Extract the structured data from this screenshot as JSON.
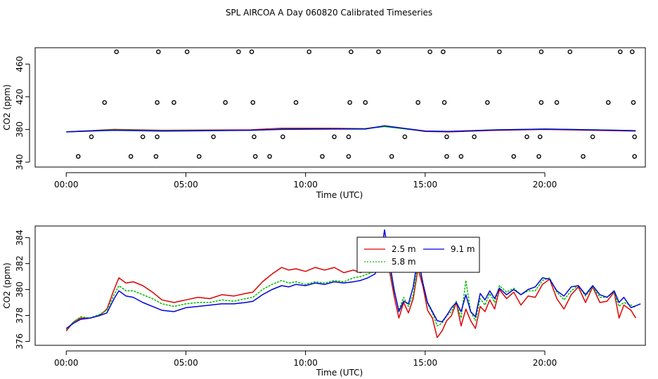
{
  "title": "SPL AIRCOA A  Day 060820  Calibrated Timeseries",
  "chart_data": [
    {
      "type": "scatter",
      "xlabel": "Time (UTC)",
      "ylabel": "CO2 (ppm)",
      "xlim": [
        -1.3,
        24.2
      ],
      "ylim": [
        334,
        480
      ],
      "x_ticks": [
        {
          "value": 0,
          "label": "00:00"
        },
        {
          "value": 5,
          "label": "05:00"
        },
        {
          "value": 10,
          "label": "10:00"
        },
        {
          "value": 15,
          "label": "15:00"
        },
        {
          "value": 20,
          "label": "20:00"
        }
      ],
      "y_ticks": [
        {
          "value": 340,
          "label": "340"
        },
        {
          "value": 380,
          "label": "380"
        },
        {
          "value": 420,
          "label": "420"
        },
        {
          "value": 460,
          "label": "460"
        }
      ],
      "grid": false,
      "markers": {
        "symbol": "open-circle",
        "color": "#000000",
        "x": [
          2.1,
          3.85,
          5.05,
          7.2,
          7.75,
          10.15,
          11.9,
          13.05,
          15.2,
          15.75,
          18.1,
          19.85,
          21.05,
          23.15,
          23.65,
          1.6,
          3.8,
          4.5,
          6.65,
          7.8,
          9.6,
          11.85,
          12.5,
          14.7,
          15.8,
          17.6,
          19.85,
          20.5,
          22.65,
          23.7,
          1.05,
          3.2,
          3.8,
          6.15,
          7.85,
          9.05,
          11.2,
          11.8,
          14.15,
          15.9,
          17.05,
          19.25,
          19.8,
          22.0,
          23.75,
          0.5,
          2.7,
          3.75,
          5.55,
          7.9,
          8.5,
          10.7,
          11.8,
          13.6,
          15.9,
          16.5,
          18.7,
          19.75,
          21.6,
          23.75
        ],
        "y": [
          475,
          475,
          475,
          475,
          475,
          475,
          475,
          475,
          475,
          475,
          475,
          475,
          475,
          475,
          475,
          413,
          413,
          413,
          413,
          413,
          413,
          413,
          413,
          413,
          413,
          413,
          413,
          413,
          413,
          413,
          371,
          371,
          371,
          371,
          371,
          371,
          371,
          371,
          371,
          371,
          371,
          371,
          371,
          371,
          371,
          347,
          347,
          347,
          347,
          347,
          347,
          347,
          347,
          347,
          347,
          347,
          347,
          347,
          347,
          347
        ]
      },
      "series": [
        {
          "color": "#dd0000",
          "x": [
            0,
            2,
            4,
            7.7,
            9,
            11,
            12.5,
            13.3,
            15,
            16,
            18,
            20,
            22,
            23.8
          ],
          "values": [
            377,
            380,
            379,
            379.5,
            381.5,
            381.5,
            381,
            384,
            377.5,
            377,
            379,
            380,
            379,
            378
          ]
        },
        {
          "color": "#00bb00",
          "x": [
            0,
            2,
            4,
            7.7,
            9,
            11,
            12.5,
            13.3,
            15,
            16,
            18,
            20,
            22,
            23.8
          ],
          "values": [
            377,
            379.5,
            378.5,
            379,
            380.5,
            380.5,
            381,
            383.5,
            378,
            377.5,
            379.5,
            380.5,
            379.5,
            378.5
          ]
        },
        {
          "color": "#0000dd",
          "x": [
            0,
            2,
            4,
            7.7,
            9,
            11,
            12.5,
            13.3,
            15,
            16,
            18,
            20,
            22,
            23.8
          ],
          "values": [
            377,
            379,
            378,
            379,
            380,
            380.5,
            380.5,
            384.5,
            378,
            377.5,
            379.5,
            380.5,
            379.5,
            378.5
          ]
        }
      ]
    },
    {
      "type": "line",
      "xlabel": "Time (UTC)",
      "ylabel": "CO2 (ppm)",
      "xlim": [
        -1.3,
        24.2
      ],
      "ylim": [
        375.7,
        384.9
      ],
      "x_ticks": [
        {
          "value": 0,
          "label": "00:00"
        },
        {
          "value": 5,
          "label": "05:00"
        },
        {
          "value": 10,
          "label": "10:00"
        },
        {
          "value": 15,
          "label": "15:00"
        },
        {
          "value": 20,
          "label": "20:00"
        }
      ],
      "y_ticks": [
        {
          "value": 376,
          "label": "376"
        },
        {
          "value": 378,
          "label": "378"
        },
        {
          "value": 380,
          "label": "380"
        },
        {
          "value": 382,
          "label": "382"
        },
        {
          "value": 384,
          "label": "384"
        }
      ],
      "grid": false,
      "legend_position": "top-center",
      "series": [
        {
          "name": "2.5 m",
          "color": "#dd0000",
          "dash": "solid",
          "x": [
            0,
            0.3,
            0.6,
            1.0,
            1.4,
            1.7,
            2.0,
            2.2,
            2.5,
            2.8,
            3.2,
            3.6,
            4.0,
            4.5,
            5.0,
            5.5,
            6.0,
            6.5,
            7.0,
            7.5,
            7.8,
            8.2,
            8.6,
            9.0,
            9.3,
            9.6,
            10.0,
            10.4,
            10.8,
            11.2,
            11.6,
            12.0,
            12.3,
            12.6,
            12.9,
            13.1,
            13.3,
            13.5,
            13.7,
            13.9,
            14.1,
            14.3,
            14.5,
            14.7,
            14.9,
            15.1,
            15.3,
            15.5,
            15.7,
            15.9,
            16.1,
            16.3,
            16.5,
            16.7,
            16.9,
            17.1,
            17.3,
            17.5,
            17.7,
            17.9,
            18.1,
            18.4,
            18.7,
            19.0,
            19.3,
            19.6,
            19.9,
            20.2,
            20.5,
            20.8,
            21.1,
            21.4,
            21.7,
            22.0,
            22.3,
            22.6,
            22.9,
            23.1,
            23.3,
            23.6,
            23.8
          ],
          "values": [
            376.8,
            377.5,
            377.8,
            377.8,
            378.0,
            378.5,
            380.0,
            380.9,
            380.5,
            380.6,
            380.3,
            379.8,
            379.2,
            379.0,
            379.2,
            379.4,
            379.3,
            379.6,
            379.5,
            379.7,
            379.8,
            380.6,
            381.2,
            381.7,
            381.5,
            381.6,
            381.4,
            381.7,
            381.5,
            381.7,
            381.3,
            381.5,
            381.3,
            381.7,
            381.6,
            382.2,
            383.4,
            381.5,
            379.5,
            377.8,
            379.0,
            378.2,
            379.3,
            381.6,
            380.3,
            378.4,
            377.8,
            376.3,
            376.8,
            377.6,
            378.0,
            379.0,
            377.2,
            378.5,
            377.6,
            377.0,
            378.7,
            378.3,
            379.2,
            378.5,
            380.0,
            379.3,
            379.8,
            378.8,
            379.5,
            379.4,
            380.4,
            380.8,
            379.3,
            378.5,
            379.6,
            380.2,
            379.0,
            380.2,
            379.0,
            379.1,
            379.8,
            377.8,
            378.8,
            378.4,
            377.8
          ]
        },
        {
          "name": "5.8 m",
          "color": "#00bb00",
          "dash": "dotted",
          "x": [
            0,
            0.3,
            0.6,
            1.0,
            1.4,
            1.7,
            2.0,
            2.2,
            2.5,
            2.8,
            3.2,
            3.6,
            4.0,
            4.5,
            5.0,
            5.5,
            6.0,
            6.5,
            7.0,
            7.5,
            7.8,
            8.2,
            8.6,
            9.0,
            9.3,
            9.6,
            10.0,
            10.4,
            10.8,
            11.2,
            11.6,
            12.0,
            12.3,
            12.6,
            12.9,
            13.1,
            13.3,
            13.5,
            13.7,
            13.9,
            14.1,
            14.3,
            14.5,
            14.7,
            14.9,
            15.1,
            15.3,
            15.5,
            15.7,
            15.9,
            16.1,
            16.3,
            16.5,
            16.7,
            16.9,
            17.1,
            17.3,
            17.5,
            17.7,
            17.9,
            18.1,
            18.4,
            18.7,
            19.0,
            19.3,
            19.6,
            19.9,
            20.2,
            20.5,
            20.8,
            21.1,
            21.4,
            21.7,
            22.0,
            22.3,
            22.6,
            22.9,
            23.1,
            23.3,
            23.6,
            23.8
          ],
          "values": [
            376.9,
            377.5,
            377.9,
            377.8,
            378.1,
            378.4,
            379.6,
            380.3,
            379.9,
            379.9,
            379.6,
            379.3,
            378.9,
            378.7,
            378.9,
            379.0,
            379.0,
            379.2,
            379.1,
            379.3,
            379.4,
            380.0,
            380.4,
            380.7,
            380.5,
            380.6,
            380.4,
            380.6,
            380.5,
            380.7,
            380.6,
            380.9,
            381.0,
            381.2,
            381.4,
            382.0,
            383.5,
            381.8,
            379.9,
            378.4,
            379.4,
            378.7,
            379.6,
            382.0,
            380.6,
            378.9,
            378.2,
            377.2,
            377.4,
            378.0,
            378.3,
            379.1,
            377.8,
            380.7,
            378.3,
            377.6,
            379.3,
            378.8,
            379.7,
            379.0,
            380.3,
            379.8,
            380.1,
            379.6,
            379.9,
            379.9,
            380.7,
            380.9,
            379.8,
            379.2,
            379.9,
            380.3,
            379.5,
            380.2,
            379.4,
            379.4,
            379.8,
            378.7,
            379.0,
            378.8,
            378.6
          ]
        },
        {
          "name": "9.1 m",
          "color": "#0000dd",
          "dash": "solid",
          "x": [
            0,
            0.3,
            0.6,
            1.0,
            1.4,
            1.7,
            2.0,
            2.2,
            2.5,
            2.8,
            3.2,
            3.6,
            4.0,
            4.5,
            5.0,
            5.5,
            6.0,
            6.5,
            7.0,
            7.5,
            7.8,
            8.2,
            8.6,
            9.0,
            9.3,
            9.6,
            10.0,
            10.4,
            10.8,
            11.2,
            11.6,
            12.0,
            12.3,
            12.6,
            12.9,
            13.1,
            13.3,
            13.5,
            13.7,
            13.9,
            14.1,
            14.3,
            14.5,
            14.7,
            14.9,
            15.1,
            15.3,
            15.5,
            15.7,
            15.9,
            16.1,
            16.3,
            16.5,
            16.7,
            16.9,
            17.1,
            17.3,
            17.5,
            17.7,
            17.9,
            18.1,
            18.4,
            18.7,
            19.0,
            19.3,
            19.6,
            19.9,
            20.2,
            20.5,
            20.8,
            21.1,
            21.4,
            21.7,
            22.0,
            22.3,
            22.6,
            22.9,
            23.1,
            23.3,
            23.6,
            24.0
          ],
          "values": [
            377.0,
            377.4,
            377.7,
            377.8,
            378.0,
            378.2,
            379.3,
            379.9,
            379.5,
            379.4,
            379.0,
            378.7,
            378.4,
            378.3,
            378.6,
            378.7,
            378.8,
            378.9,
            378.9,
            379.0,
            379.1,
            379.6,
            380.0,
            380.3,
            380.2,
            380.4,
            380.3,
            380.5,
            380.4,
            380.6,
            380.5,
            380.6,
            380.7,
            380.9,
            381.2,
            382.0,
            384.6,
            382.2,
            380.0,
            378.3,
            379.1,
            378.9,
            380.2,
            382.6,
            380.5,
            379.0,
            378.3,
            377.6,
            377.5,
            378.0,
            378.6,
            379.0,
            378.3,
            379.6,
            378.3,
            377.9,
            379.7,
            379.2,
            379.9,
            379.3,
            380.1,
            379.6,
            380.0,
            379.6,
            380.0,
            380.2,
            380.9,
            380.8,
            379.9,
            379.5,
            380.2,
            380.3,
            379.6,
            380.3,
            379.6,
            379.4,
            379.9,
            379.0,
            379.4,
            378.6,
            378.9
          ]
        }
      ]
    }
  ]
}
